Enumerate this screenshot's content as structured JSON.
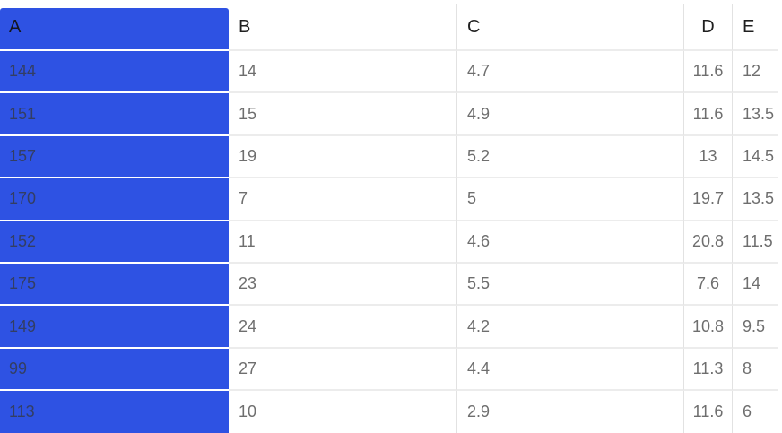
{
  "table": {
    "columns": [
      "A",
      "B",
      "C",
      "D",
      "E"
    ],
    "rows": [
      [
        "144",
        "14",
        "4.7",
        "11.6",
        "12"
      ],
      [
        "151",
        "15",
        "4.9",
        "11.6",
        "13.5"
      ],
      [
        "157",
        "19",
        "5.2",
        "13",
        "14.5"
      ],
      [
        "170",
        "7",
        "5",
        "19.7",
        "13.5"
      ],
      [
        "152",
        "11",
        "4.6",
        "20.8",
        "11.5"
      ],
      [
        "175",
        "23",
        "5.5",
        "7.6",
        "14"
      ],
      [
        "149",
        "24",
        "4.2",
        "10.8",
        "9.5"
      ],
      [
        "99",
        "27",
        "4.4",
        "11.3",
        "8"
      ],
      [
        "113",
        "10",
        "2.9",
        "11.6",
        "6"
      ]
    ],
    "selected_column": "A",
    "colors": {
      "selection_fill": "#2e52e3",
      "selection_text": "#333e63",
      "header_text": "#1f1f1f",
      "cell_text": "#6e6e6e",
      "grid_line_horizontal": "#ececec",
      "grid_line_vertical": "#e2e2e2"
    }
  }
}
